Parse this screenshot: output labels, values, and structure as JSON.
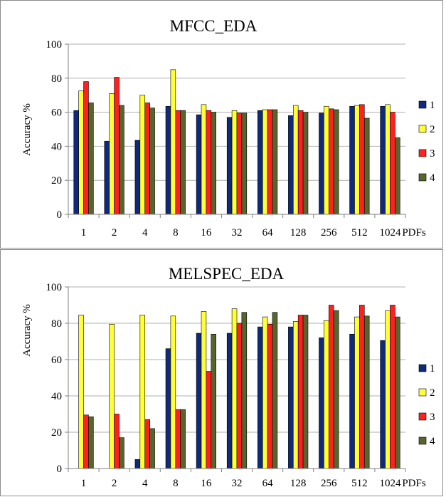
{
  "colors": {
    "series": [
      "#0f2a7a",
      "#ffff33",
      "#ff2020",
      "#56662e"
    ],
    "grid": "#b0b0b0",
    "frame": "#8c8c8c"
  },
  "chart_data": [
    {
      "type": "bar",
      "title": "MFCC_EDA",
      "ylabel": "Accuracy %",
      "xlabel": "PDFs",
      "ylim": [
        0,
        100
      ],
      "yticks": [
        0,
        20,
        40,
        60,
        80,
        100
      ],
      "grid": true,
      "legend_position": "right",
      "categories": [
        "1",
        "2",
        "4",
        "8",
        "16",
        "32",
        "64",
        "128",
        "256",
        "512",
        "1024"
      ],
      "series": [
        {
          "name": "1",
          "values": [
            61,
            43,
            43.5,
            63.5,
            58.5,
            57,
            61,
            58,
            59.5,
            63.5,
            63.5
          ]
        },
        {
          "name": "2",
          "values": [
            72.5,
            71,
            70,
            85,
            64.5,
            61,
            61.5,
            64,
            63.5,
            64,
            64.5
          ]
        },
        {
          "name": "3",
          "values": [
            78,
            80.5,
            65.5,
            61,
            61,
            59.5,
            61.5,
            61,
            62,
            64.5,
            60
          ]
        },
        {
          "name": "4",
          "values": [
            65.5,
            64,
            62.5,
            61,
            60,
            59.5,
            61.5,
            60,
            61.5,
            56.5,
            45
          ]
        }
      ]
    },
    {
      "type": "bar",
      "title": "MELSPEC_EDA",
      "ylabel": "Accuracy %",
      "xlabel": "PDFs",
      "ylim": [
        0,
        100
      ],
      "yticks": [
        0,
        20,
        40,
        60,
        80,
        100
      ],
      "grid": true,
      "legend_position": "right",
      "categories": [
        "1",
        "2",
        "4",
        "8",
        "16",
        "32",
        "64",
        "128",
        "256",
        "512",
        "1024"
      ],
      "series": [
        {
          "name": "1",
          "values": [
            0,
            0,
            5,
            66,
            74.5,
            74.5,
            78,
            78,
            72,
            74,
            70.5
          ]
        },
        {
          "name": "2",
          "values": [
            84.5,
            79.5,
            84.5,
            84,
            86.5,
            88,
            83.5,
            81,
            81.5,
            83.5,
            87
          ]
        },
        {
          "name": "3",
          "values": [
            29.5,
            30,
            27,
            32.5,
            53.5,
            80,
            79.5,
            84.5,
            90,
            90,
            90
          ]
        },
        {
          "name": "4",
          "values": [
            28.5,
            17,
            22,
            32.5,
            74,
            86,
            86,
            84.5,
            87,
            84,
            83.5
          ]
        }
      ]
    }
  ]
}
